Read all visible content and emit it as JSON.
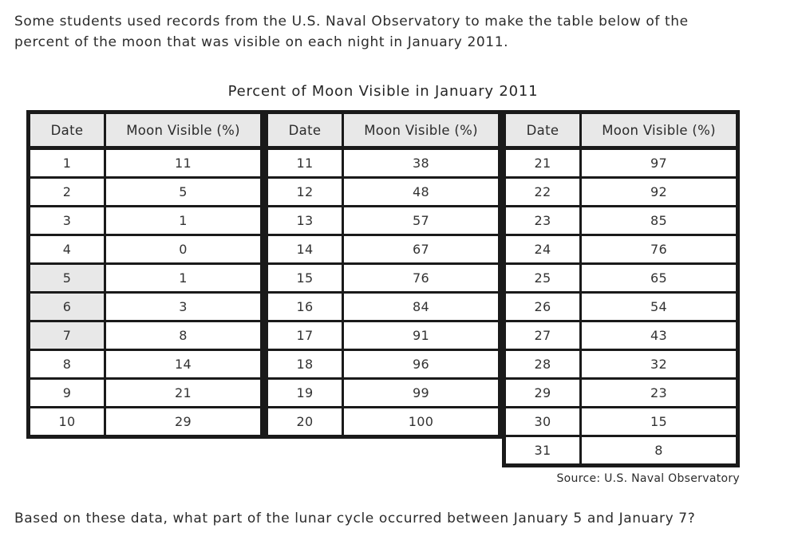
{
  "intro": {
    "line1": "Some students used records from the U.S. Naval Observatory to make the table below of the",
    "line2": "percent of the moon that was visible on each night in January 2011."
  },
  "table_title": "Percent of Moon Visible in January 2011",
  "columns": [
    "Date",
    "Moon Visible (%)"
  ],
  "tables": [
    {
      "rows": [
        [
          1,
          11
        ],
        [
          2,
          5
        ],
        [
          3,
          1
        ],
        [
          4,
          0
        ],
        [
          5,
          1
        ],
        [
          6,
          3
        ],
        [
          7,
          8
        ],
        [
          8,
          14
        ],
        [
          9,
          21
        ],
        [
          10,
          29
        ]
      ],
      "shaded_dates": [
        5,
        6,
        7
      ]
    },
    {
      "rows": [
        [
          11,
          38
        ],
        [
          12,
          48
        ],
        [
          13,
          57
        ],
        [
          14,
          67
        ],
        [
          15,
          76
        ],
        [
          16,
          84
        ],
        [
          17,
          91
        ],
        [
          18,
          96
        ],
        [
          19,
          99
        ],
        [
          20,
          100
        ]
      ],
      "shaded_dates": []
    },
    {
      "rows": [
        [
          21,
          97
        ],
        [
          22,
          92
        ],
        [
          23,
          85
        ],
        [
          24,
          76
        ],
        [
          25,
          65
        ],
        [
          26,
          54
        ],
        [
          27,
          43
        ],
        [
          28,
          32
        ],
        [
          29,
          23
        ],
        [
          30,
          15
        ],
        [
          31,
          8
        ]
      ],
      "shaded_dates": []
    }
  ],
  "chart_data": {
    "type": "table",
    "title": "Percent of Moon Visible in January 2011",
    "columns": [
      "Date",
      "Moon Visible (%)"
    ],
    "dates": [
      1,
      2,
      3,
      4,
      5,
      6,
      7,
      8,
      9,
      10,
      11,
      12,
      13,
      14,
      15,
      16,
      17,
      18,
      19,
      20,
      21,
      22,
      23,
      24,
      25,
      26,
      27,
      28,
      29,
      30,
      31
    ],
    "values": [
      11,
      5,
      1,
      0,
      1,
      3,
      8,
      14,
      21,
      29,
      38,
      48,
      57,
      67,
      76,
      84,
      91,
      96,
      99,
      100,
      97,
      92,
      85,
      76,
      65,
      54,
      43,
      32,
      23,
      15,
      8
    ]
  },
  "source_note": "Source: U.S. Naval Observatory",
  "question": "Based on these data, what part of the lunar cycle occurred between January 5 and January 7?",
  "colors": {
    "header_bg": "#e8e8e8",
    "shaded_cell_bg": "#e8e8e8",
    "border": "#1a1a1a",
    "text": "#2b2b2b"
  }
}
